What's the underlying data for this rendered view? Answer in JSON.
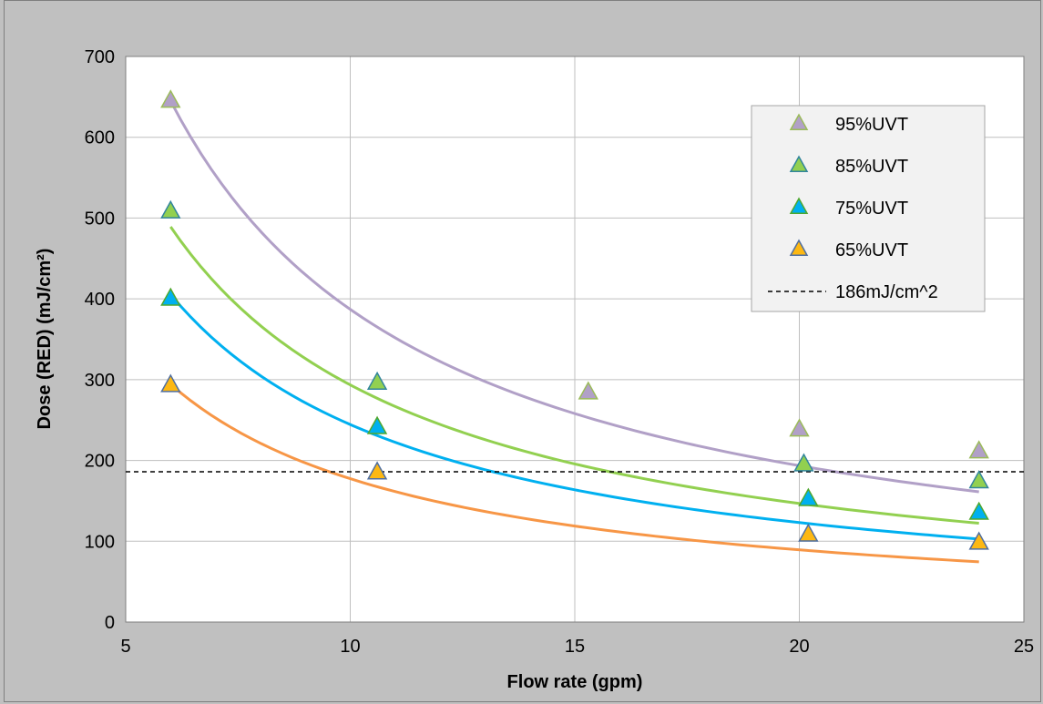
{
  "chart_data": {
    "type": "scatter",
    "xlabel": "Flow rate (gpm)",
    "ylabel": "Dose (RED) (mJ/cm²)",
    "xlim": [
      5,
      25
    ],
    "ylim": [
      0,
      700
    ],
    "xticks": [
      "5",
      "10",
      "15",
      "20",
      "25"
    ],
    "yticks": [
      "0",
      "100",
      "200",
      "300",
      "400",
      "500",
      "600",
      "700"
    ],
    "grid": true,
    "legend_position": "top-right",
    "series": [
      {
        "name": "95%UVT",
        "color": "#b1a0c7",
        "marker_fill": "#b1a0c7",
        "marker_edge": "#9bbb59",
        "trendline_color": "#b1a0c7",
        "points": [
          [
            6.0,
            645
          ],
          [
            15.3,
            284
          ],
          [
            20.0,
            238
          ],
          [
            24.0,
            211
          ]
        ],
        "trendline": {
          "form": "power",
          "a": 3870,
          "b": -1.0
        }
      },
      {
        "name": "85%UVT",
        "color": "#92d050",
        "marker_fill": "#92d050",
        "marker_edge": "#31859c",
        "trendline_color": "#92d050",
        "points": [
          [
            6.0,
            508
          ],
          [
            10.6,
            296
          ],
          [
            20.1,
            195
          ],
          [
            24.0,
            174
          ]
        ],
        "trendline": {
          "form": "power",
          "a": 2935,
          "b": -1.0
        }
      },
      {
        "name": "75%UVT",
        "color": "#00b0f0",
        "marker_fill": "#00b0f0",
        "marker_edge": "#4ea72e",
        "trendline_color": "#00b0f0",
        "points": [
          [
            6.0,
            400
          ],
          [
            10.6,
            241
          ],
          [
            20.2,
            152
          ],
          [
            24.0,
            135
          ]
        ],
        "trendline": {
          "form": "power",
          "a": 2389,
          "b": -0.99
        }
      },
      {
        "name": "65%UVT",
        "color": "#fab446",
        "marker_fill": "#fdb813",
        "marker_edge": "#4f6ea0",
        "trendline_color": "#f79646",
        "points": [
          [
            6.0,
            293
          ],
          [
            10.6,
            185
          ],
          [
            20.2,
            108
          ],
          [
            24.0,
            98
          ]
        ],
        "trendline": {
          "form": "power",
          "a": 1734,
          "b": -0.99
        }
      }
    ],
    "reference_line": {
      "name": "186mJ/cm^2",
      "y": 186,
      "style": "dashed",
      "color": "#000000"
    }
  }
}
